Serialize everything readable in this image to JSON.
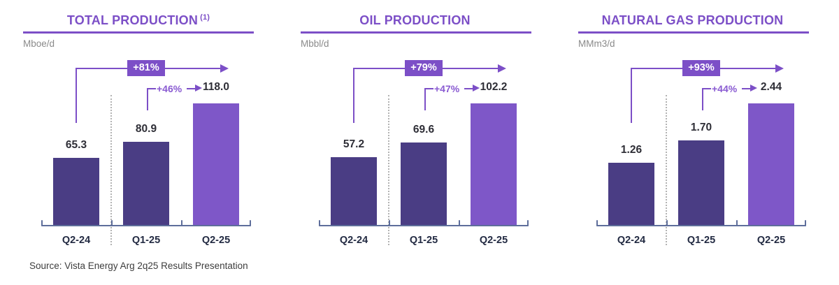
{
  "source_note": "Source: Vista Energy Arg 2q25 Results Presentation",
  "colors": {
    "accent_purple": "#7C4FC7",
    "growth_text_purple": "#8A5BD2",
    "bar_dark": "#4A3D84",
    "bar_light": "#7E57C8",
    "axis_slate": "#5E6E9B",
    "value_text": "#2E2E36",
    "category_text": "#222A42",
    "unit_text": "#8A8A8A",
    "source_text": "#3D3D3D",
    "dotted_line": "#B3B3B3",
    "badge_text": "#FFFFFF"
  },
  "chart_data": [
    {
      "type": "bar",
      "title": "TOTAL PRODUCTION",
      "title_sup": "(1)",
      "unit": "Mboe/d",
      "categories": [
        "Q2-24",
        "Q1-25",
        "Q2-25"
      ],
      "values": [
        65.3,
        80.9,
        118.0
      ],
      "value_labels": [
        "65.3",
        "80.9",
        "118.0"
      ],
      "yoy_growth": "+81%",
      "qoq_growth": "+46%",
      "bar_styles": [
        "dark",
        "dark",
        "light"
      ],
      "legend": false,
      "grid": false
    },
    {
      "type": "bar",
      "title": "OIL PRODUCTION",
      "title_sup": "",
      "unit": "Mbbl/d",
      "categories": [
        "Q2-24",
        "Q1-25",
        "Q2-25"
      ],
      "values": [
        57.2,
        69.6,
        102.2
      ],
      "value_labels": [
        "57.2",
        "69.6",
        "102.2"
      ],
      "yoy_growth": "+79%",
      "qoq_growth": "+47%",
      "bar_styles": [
        "dark",
        "dark",
        "light"
      ],
      "legend": false,
      "grid": false
    },
    {
      "type": "bar",
      "title": "NATURAL GAS PRODUCTION",
      "title_sup": "",
      "unit": "MMm3/d",
      "categories": [
        "Q2-24",
        "Q1-25",
        "Q2-25"
      ],
      "values": [
        1.26,
        1.7,
        2.44
      ],
      "value_labels": [
        "1.26",
        "1.70",
        "2.44"
      ],
      "yoy_growth": "+93%",
      "qoq_growth": "+44%",
      "bar_styles": [
        "dark",
        "dark",
        "light"
      ],
      "legend": false,
      "grid": false
    }
  ]
}
